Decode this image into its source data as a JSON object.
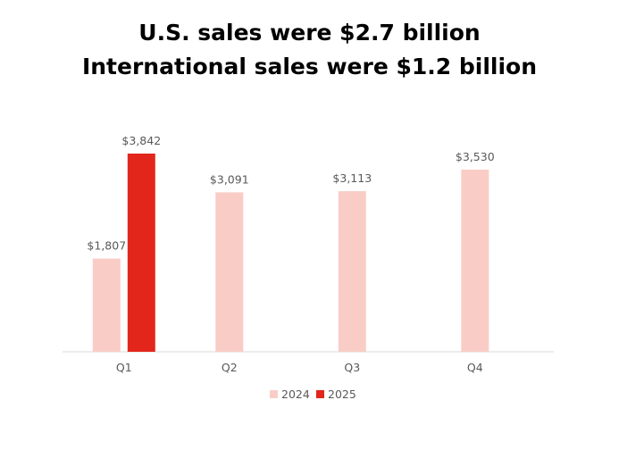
{
  "title": {
    "line1": "U.S. sales were $2.7 billion",
    "line2": "International sales were $1.2 billion"
  },
  "chart_data": {
    "type": "bar",
    "categories": [
      "Q1",
      "Q2",
      "Q3",
      "Q4"
    ],
    "series": [
      {
        "name": "2024",
        "color": "#f9cdc6",
        "values": [
          1807,
          3091,
          3113,
          3530
        ],
        "labels": [
          "$1,807",
          "$3,091",
          "$3,113",
          "$3,530"
        ]
      },
      {
        "name": "2025",
        "color": "#e3261c",
        "values": [
          3842,
          null,
          null,
          null
        ],
        "labels": [
          "$3,842",
          null,
          null,
          null
        ]
      }
    ],
    "ylim": [
      0,
      3842
    ],
    "grid": false,
    "legend": "bottom-center"
  }
}
